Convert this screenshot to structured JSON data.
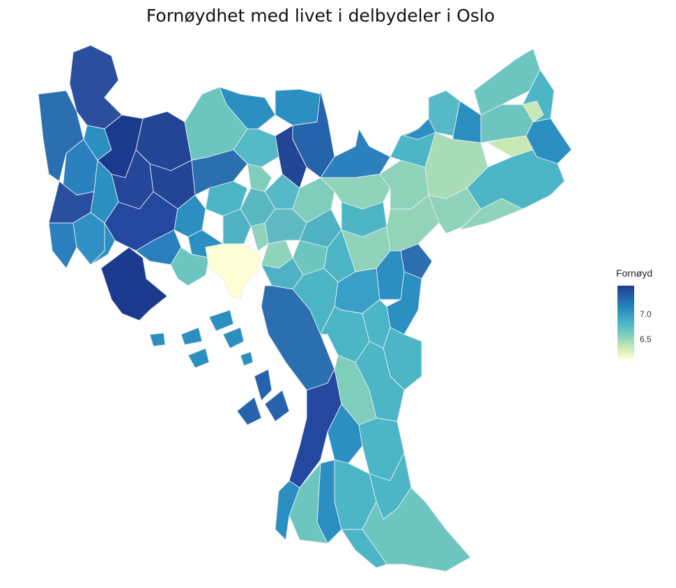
{
  "title": "Fornøydhet med livet i delbydeler i Oslo",
  "legend": {
    "title": "Fornøyd",
    "ticks": [
      {
        "label": "7.0",
        "value": 7.0
      },
      {
        "label": "6.5",
        "value": 6.5
      }
    ],
    "range": [
      6.2,
      7.35
    ],
    "colors": [
      "#1f3f91",
      "#2166ac",
      "#2c8fc1",
      "#4cb5c6",
      "#7fcdbb",
      "#c7e9b4",
      "#ffffd9"
    ]
  }
}
